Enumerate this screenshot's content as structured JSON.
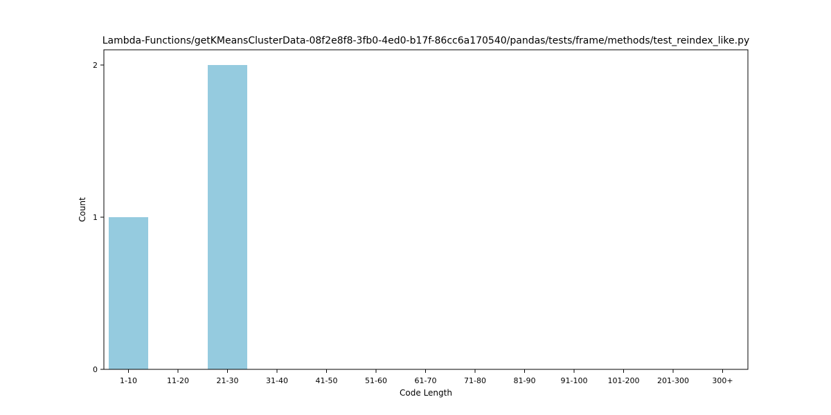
{
  "chart_data": {
    "type": "bar",
    "title": "Lambda-Functions/getKMeansClusterData-08f2e8f8-3fb0-4ed0-b17f-86cc6a170540/pandas/tests/frame/methods/test_reindex_like.py",
    "xlabel": "Code Length",
    "ylabel": "Count",
    "categories": [
      "1-10",
      "11-20",
      "21-30",
      "31-40",
      "41-50",
      "51-60",
      "61-70",
      "71-80",
      "81-90",
      "91-100",
      "101-200",
      "201-300",
      "300+"
    ],
    "values": [
      1,
      0,
      2,
      0,
      0,
      0,
      0,
      0,
      0,
      0,
      0,
      0,
      0
    ],
    "ylim": [
      0,
      2.1
    ],
    "yticks": [
      0,
      1,
      2
    ],
    "grid": false,
    "bar_color": "#95cbdf",
    "axis_color": "#000000"
  }
}
